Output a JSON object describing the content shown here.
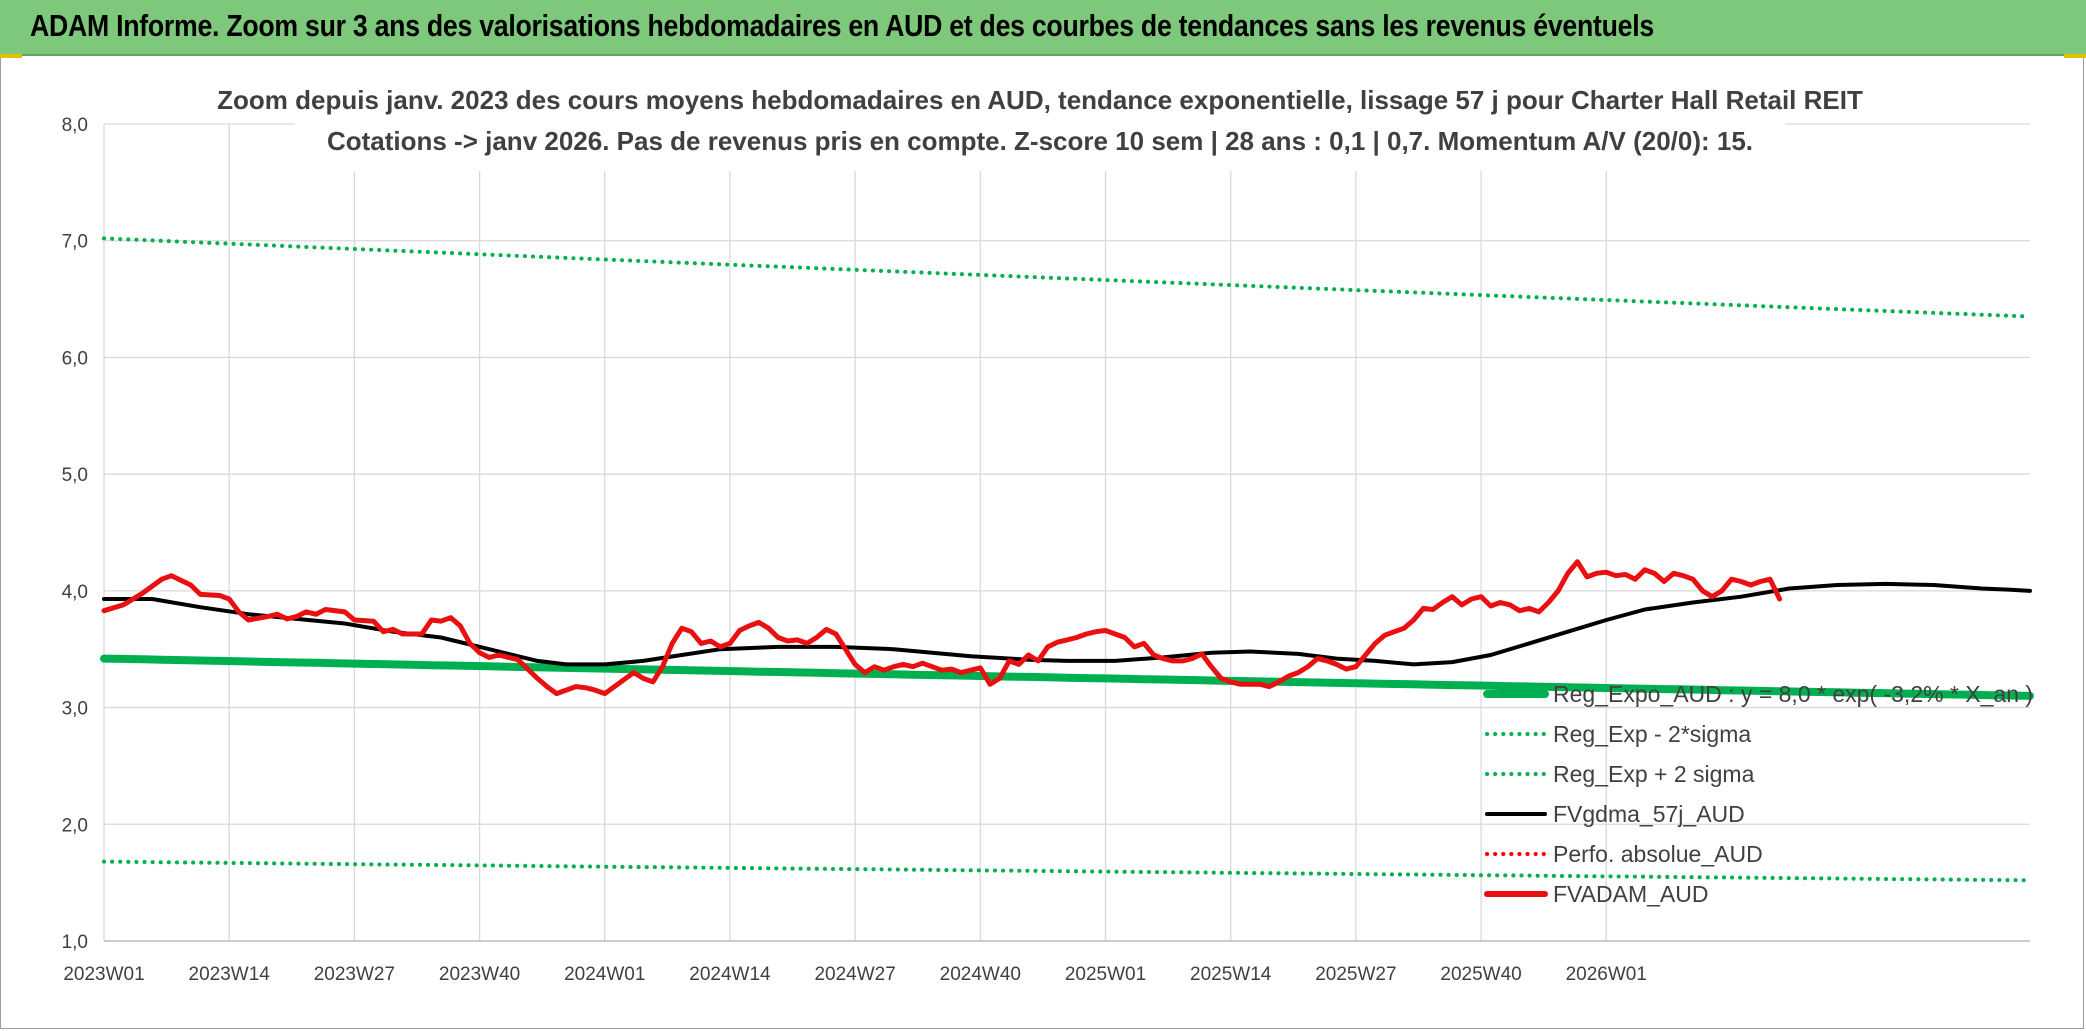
{
  "header": {
    "title": "ADAM Informe. Zoom sur 3 ans des valorisations hebdomadaires en AUD et des courbes de tendances sans les revenus éventuels"
  },
  "colors": {
    "header_bg": "#7dc87a",
    "green": "#00b050",
    "black": "#000000",
    "red": "#e81010",
    "red_dotted": "#ff0000",
    "grid": "#d9d9d9"
  },
  "chart_data": {
    "type": "line",
    "subtitle_line1": "Zoom depuis janv. 2023 des cours moyens hebdomadaires en AUD, tendance exponentielle, lissage 57 j pour Charter Hall Retail REIT",
    "subtitle_line2": "Cotations -> janv 2026. Pas de revenus pris en compte. Z-score 10 sem | 28 ans : 0,1 | 0,7. Momentum A/V (20/0): 15.",
    "xlabel": "",
    "ylabel": "",
    "ylim": [
      1.0,
      8.0
    ],
    "y_ticks": [
      "1,0",
      "2,0",
      "3,0",
      "4,0",
      "5,0",
      "6,0",
      "7,0",
      "8,0"
    ],
    "x_ticks": [
      "2023W01",
      "2023W14",
      "2023W27",
      "2023W40",
      "2024W01",
      "2024W14",
      "2024W27",
      "2024W40",
      "2025W01",
      "2025W14",
      "2025W27",
      "2025W40",
      "2026W01"
    ],
    "x_count": 163,
    "grid": true,
    "legend_position": "bottom-right",
    "series": [
      {
        "name": "Reg_Expo_AUD : y = 8,0 * exp( -3,2% * X_an )",
        "style": "solid-thick",
        "color": "#00b050",
        "start": 3.42,
        "end": 3.1
      },
      {
        "name": "Reg_Exp - 2*sigma",
        "style": "dotted",
        "color": "#00b050",
        "start": 1.68,
        "end": 1.52
      },
      {
        "name": "Reg_Exp + 2 sigma",
        "style": "dotted",
        "color": "#00b050",
        "start": 7.02,
        "end": 6.35
      },
      {
        "name": "FVgdma_57j_AUD",
        "style": "solid",
        "color": "#000000",
        "points": [
          [
            0,
            3.93
          ],
          [
            5,
            3.93
          ],
          [
            10,
            3.86
          ],
          [
            15,
            3.8
          ],
          [
            20,
            3.76
          ],
          [
            25,
            3.72
          ],
          [
            30,
            3.65
          ],
          [
            35,
            3.6
          ],
          [
            40,
            3.5
          ],
          [
            45,
            3.4
          ],
          [
            48,
            3.37
          ],
          [
            52,
            3.37
          ],
          [
            56,
            3.4
          ],
          [
            60,
            3.45
          ],
          [
            64,
            3.5
          ],
          [
            70,
            3.52
          ],
          [
            76,
            3.52
          ],
          [
            82,
            3.5
          ],
          [
            86,
            3.47
          ],
          [
            90,
            3.44
          ],
          [
            96,
            3.41
          ],
          [
            100,
            3.4
          ],
          [
            105,
            3.4
          ],
          [
            110,
            3.43
          ],
          [
            115,
            3.47
          ],
          [
            119,
            3.48
          ],
          [
            124,
            3.46
          ],
          [
            128,
            3.42
          ],
          [
            132,
            3.4
          ],
          [
            136,
            3.37
          ],
          [
            140,
            3.39
          ],
          [
            144,
            3.45
          ],
          [
            148,
            3.55
          ],
          [
            152,
            3.65
          ],
          [
            156,
            3.75
          ],
          [
            160,
            3.84
          ],
          [
            165,
            3.9
          ],
          [
            170,
            3.95
          ],
          [
            175,
            4.02
          ],
          [
            180,
            4.05
          ],
          [
            185,
            4.06
          ],
          [
            190,
            4.05
          ],
          [
            195,
            4.02
          ],
          [
            198,
            4.01
          ],
          [
            200,
            4.0
          ]
        ]
      },
      {
        "name": "Perfo. absolue_AUD",
        "style": "dotted",
        "color": "#ff0000",
        "points": []
      },
      {
        "name": "FVADAM_AUD",
        "style": "solid-thick",
        "color": "#e81010",
        "points": [
          [
            0,
            3.83
          ],
          [
            2,
            3.88
          ],
          [
            4,
            3.98
          ],
          [
            6,
            4.1
          ],
          [
            7,
            4.13
          ],
          [
            9,
            4.05
          ],
          [
            10,
            3.97
          ],
          [
            12,
            3.96
          ],
          [
            13,
            3.93
          ],
          [
            14,
            3.82
          ],
          [
            15,
            3.75
          ],
          [
            17,
            3.78
          ],
          [
            18,
            3.8
          ],
          [
            19,
            3.76
          ],
          [
            20,
            3.78
          ],
          [
            21,
            3.82
          ],
          [
            22,
            3.8
          ],
          [
            23,
            3.84
          ],
          [
            25,
            3.82
          ],
          [
            26,
            3.75
          ],
          [
            28,
            3.74
          ],
          [
            29,
            3.65
          ],
          [
            30,
            3.67
          ],
          [
            31,
            3.63
          ],
          [
            33,
            3.63
          ],
          [
            34,
            3.75
          ],
          [
            35,
            3.74
          ],
          [
            36,
            3.77
          ],
          [
            37,
            3.7
          ],
          [
            38,
            3.55
          ],
          [
            39,
            3.47
          ],
          [
            40,
            3.43
          ],
          [
            41,
            3.45
          ],
          [
            42,
            3.43
          ],
          [
            43,
            3.41
          ],
          [
            44,
            3.33
          ],
          [
            45,
            3.25
          ],
          [
            46,
            3.18
          ],
          [
            47,
            3.12
          ],
          [
            48,
            3.15
          ],
          [
            49,
            3.18
          ],
          [
            50,
            3.17
          ],
          [
            51,
            3.15
          ],
          [
            52,
            3.12
          ],
          [
            53,
            3.18
          ],
          [
            54,
            3.24
          ],
          [
            55,
            3.3
          ],
          [
            56,
            3.25
          ],
          [
            57,
            3.22
          ],
          [
            58,
            3.35
          ],
          [
            59,
            3.55
          ],
          [
            60,
            3.68
          ],
          [
            61,
            3.65
          ],
          [
            62,
            3.55
          ],
          [
            63,
            3.57
          ],
          [
            64,
            3.52
          ],
          [
            65,
            3.55
          ],
          [
            66,
            3.66
          ],
          [
            67,
            3.7
          ],
          [
            68,
            3.73
          ],
          [
            69,
            3.68
          ],
          [
            70,
            3.6
          ],
          [
            71,
            3.57
          ],
          [
            72,
            3.58
          ],
          [
            73,
            3.55
          ],
          [
            74,
            3.6
          ],
          [
            75,
            3.67
          ],
          [
            76,
            3.63
          ],
          [
            77,
            3.5
          ],
          [
            78,
            3.37
          ],
          [
            79,
            3.3
          ],
          [
            80,
            3.35
          ],
          [
            81,
            3.32
          ],
          [
            82,
            3.35
          ],
          [
            83,
            3.37
          ],
          [
            84,
            3.35
          ],
          [
            85,
            3.38
          ],
          [
            86,
            3.35
          ],
          [
            87,
            3.32
          ],
          [
            88,
            3.33
          ],
          [
            89,
            3.3
          ],
          [
            90,
            3.32
          ],
          [
            91,
            3.34
          ],
          [
            92,
            3.2
          ],
          [
            93,
            3.25
          ],
          [
            94,
            3.4
          ],
          [
            95,
            3.37
          ],
          [
            96,
            3.45
          ],
          [
            97,
            3.4
          ],
          [
            98,
            3.52
          ],
          [
            99,
            3.56
          ],
          [
            100,
            3.58
          ],
          [
            101,
            3.6
          ],
          [
            102,
            3.63
          ],
          [
            103,
            3.65
          ],
          [
            104,
            3.66
          ],
          [
            105,
            3.63
          ],
          [
            106,
            3.6
          ],
          [
            107,
            3.52
          ],
          [
            108,
            3.55
          ],
          [
            109,
            3.45
          ],
          [
            110,
            3.42
          ],
          [
            111,
            3.4
          ],
          [
            112,
            3.4
          ],
          [
            113,
            3.42
          ],
          [
            114,
            3.46
          ],
          [
            115,
            3.35
          ],
          [
            116,
            3.25
          ],
          [
            117,
            3.22
          ],
          [
            118,
            3.2
          ],
          [
            119,
            3.2
          ],
          [
            120,
            3.2
          ],
          [
            121,
            3.18
          ],
          [
            122,
            3.22
          ],
          [
            123,
            3.27
          ],
          [
            124,
            3.3
          ],
          [
            125,
            3.35
          ],
          [
            126,
            3.42
          ],
          [
            127,
            3.4
          ],
          [
            128,
            3.37
          ],
          [
            129,
            3.33
          ],
          [
            130,
            3.35
          ],
          [
            131,
            3.45
          ],
          [
            132,
            3.55
          ],
          [
            133,
            3.62
          ],
          [
            134,
            3.65
          ],
          [
            135,
            3.68
          ],
          [
            136,
            3.75
          ],
          [
            137,
            3.85
          ],
          [
            138,
            3.84
          ],
          [
            139,
            3.9
          ],
          [
            140,
            3.95
          ],
          [
            141,
            3.88
          ],
          [
            142,
            3.93
          ],
          [
            143,
            3.95
          ],
          [
            144,
            3.87
          ],
          [
            145,
            3.9
          ],
          [
            146,
            3.88
          ],
          [
            147,
            3.83
          ],
          [
            148,
            3.85
          ],
          [
            149,
            3.82
          ],
          [
            150,
            3.9
          ],
          [
            151,
            4.0
          ],
          [
            152,
            4.15
          ],
          [
            153,
            4.25
          ],
          [
            154,
            4.12
          ],
          [
            155,
            4.15
          ],
          [
            156,
            4.16
          ],
          [
            157,
            4.13
          ],
          [
            158,
            4.14
          ],
          [
            159,
            4.1
          ],
          [
            160,
            4.18
          ],
          [
            161,
            4.15
          ],
          [
            162,
            4.08
          ],
          [
            163,
            4.15
          ],
          [
            164,
            4.13
          ],
          [
            165,
            4.1
          ],
          [
            166,
            4.0
          ],
          [
            167,
            3.95
          ],
          [
            168,
            4.0
          ],
          [
            169,
            4.1
          ],
          [
            170,
            4.08
          ],
          [
            171,
            4.05
          ],
          [
            172,
            4.08
          ],
          [
            173,
            4.1
          ],
          [
            174,
            3.93
          ]
        ]
      }
    ]
  }
}
